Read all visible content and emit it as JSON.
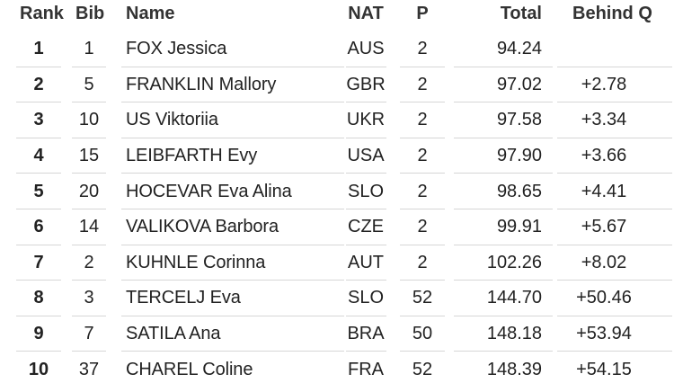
{
  "table": {
    "headers": {
      "rank": "Rank",
      "bib": "Bib",
      "name": "Name",
      "nat": "NAT",
      "p": "P",
      "total": "Total",
      "behind": "Behind Q"
    },
    "rows": [
      {
        "rank": "1",
        "bib": "1",
        "name": "FOX Jessica",
        "nat": "AUS",
        "p": "2",
        "total": "94.24",
        "behind": ""
      },
      {
        "rank": "2",
        "bib": "5",
        "name": "FRANKLIN Mallory",
        "nat": "GBR",
        "p": "2",
        "total": "97.02",
        "behind": "+2.78"
      },
      {
        "rank": "3",
        "bib": "10",
        "name": "US Viktoriia",
        "nat": "UKR",
        "p": "2",
        "total": "97.58",
        "behind": "+3.34"
      },
      {
        "rank": "4",
        "bib": "15",
        "name": "LEIBFARTH Evy",
        "nat": "USA",
        "p": "2",
        "total": "97.90",
        "behind": "+3.66"
      },
      {
        "rank": "5",
        "bib": "20",
        "name": "HOCEVAR Eva Alina",
        "nat": "SLO",
        "p": "2",
        "total": "98.65",
        "behind": "+4.41"
      },
      {
        "rank": "6",
        "bib": "14",
        "name": "VALIKOVA Barbora",
        "nat": "CZE",
        "p": "2",
        "total": "99.91",
        "behind": "+5.67"
      },
      {
        "rank": "7",
        "bib": "2",
        "name": "KUHNLE Corinna",
        "nat": "AUT",
        "p": "2",
        "total": "102.26",
        "behind": "+8.02"
      },
      {
        "rank": "8",
        "bib": "3",
        "name": "TERCELJ Eva",
        "nat": "SLO",
        "p": "52",
        "total": "144.70",
        "behind": "+50.46"
      },
      {
        "rank": "9",
        "bib": "7",
        "name": "SATILA Ana",
        "nat": "BRA",
        "p": "50",
        "total": "148.18",
        "behind": "+53.94"
      },
      {
        "rank": "10",
        "bib": "37",
        "name": "CHAREL Coline",
        "nat": "FRA",
        "p": "52",
        "total": "148.39",
        "behind": "+54.15"
      }
    ]
  }
}
